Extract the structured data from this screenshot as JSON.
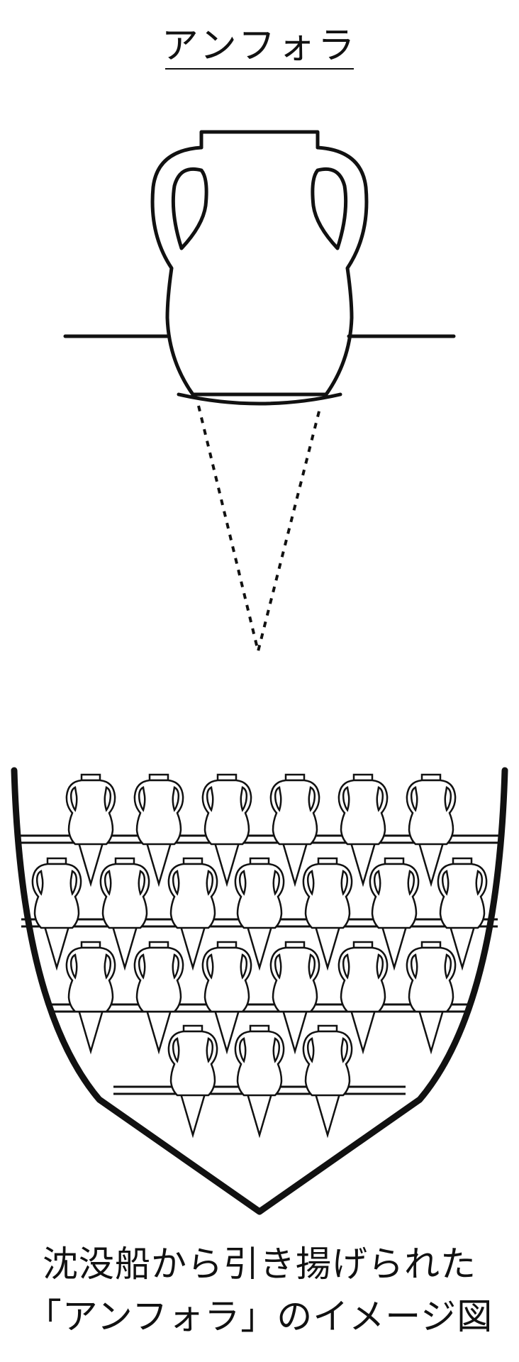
{
  "title": "アンフォラ",
  "caption": {
    "line1": "沈没船から引き揚げられた",
    "line2": "「アンフォラ」のイメージ図"
  },
  "colors": {
    "ink": "#111111",
    "background": "#ffffff"
  },
  "hull": {
    "rows": [
      6,
      7,
      6,
      3
    ]
  }
}
